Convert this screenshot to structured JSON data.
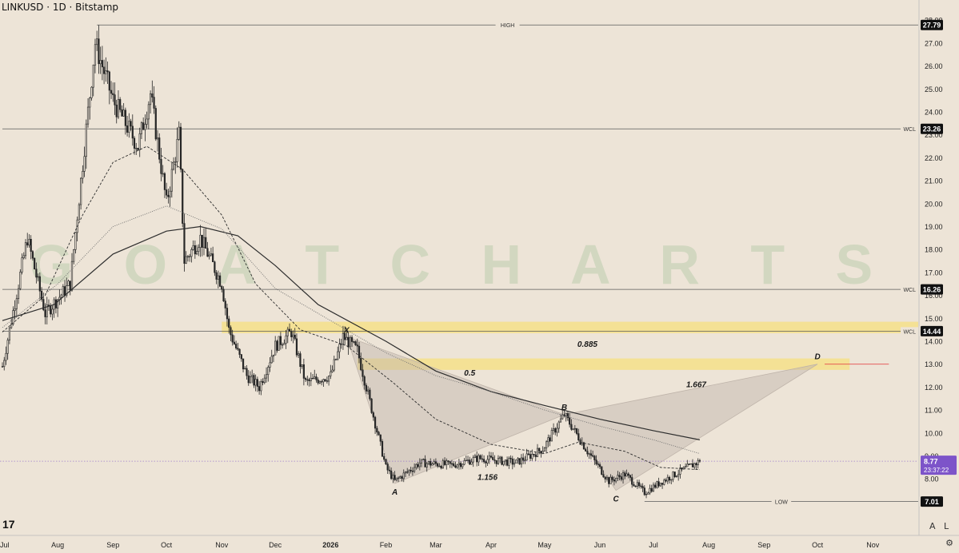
{
  "title": "LINKUSD · 1D · Bitstamp",
  "watermark": "G O A T   C H A R T S",
  "scale_buttons": {
    "auto": "A",
    "log": "L"
  },
  "settings_icon": "gear-icon",
  "tv_logo": "17",
  "colors": {
    "background": "#ede4d7",
    "candle": "#262626",
    "zone": "#f5e08a",
    "pattern_fill": "#bfb4aa",
    "price_label": "#7d54c9",
    "red_line": "#e34b4b",
    "watermark": "#c8d3b8"
  },
  "chart_data": {
    "type": "candlestick",
    "symbol": "LINKUSD",
    "interval": "1D",
    "exchange": "Bitstamp",
    "y_axis": {
      "ticks": [
        8.0,
        9.0,
        10.0,
        11.0,
        12.0,
        13.0,
        14.0,
        15.0,
        16.0,
        17.0,
        18.0,
        19.0,
        20.0,
        21.0,
        22.0,
        23.0,
        24.0,
        25.0,
        26.0,
        27.0,
        28.0
      ],
      "tick_labels": [
        "8.00",
        "9.00",
        "10.00",
        "11.00",
        "12.00",
        "13.00",
        "14.00",
        "15.00",
        "16.00",
        "17.00",
        "18.00",
        "19.00",
        "20.00",
        "21.00",
        "22.00",
        "23.00",
        "24.00",
        "25.00",
        "26.00",
        "27.00",
        "28.00"
      ],
      "ylim": [
        6.0,
        28.2
      ]
    },
    "x_axis": {
      "labels": [
        "Jul",
        "Aug",
        "Sep",
        "Oct",
        "Nov",
        "Dec",
        "2026",
        "Feb",
        "Mar",
        "Apr",
        "May",
        "Jun",
        "Jul",
        "Aug",
        "Sep",
        "Oct",
        "Nov"
      ],
      "dates": [
        "2025-07-01",
        "2025-08-01",
        "2025-09-01",
        "2025-10-01",
        "2025-11-01",
        "2025-12-01",
        "2026-01-01",
        "2026-02-01",
        "2026-03-01",
        "2026-04-01",
        "2026-05-01",
        "2026-06-01",
        "2026-07-01",
        "2026-08-01",
        "2026-09-01",
        "2026-10-01",
        "2026-11-01"
      ],
      "bold_labels": [
        "2026"
      ]
    },
    "key_points": [
      {
        "date": "2025-07-01",
        "price": 12.9
      },
      {
        "date": "2025-07-15",
        "price": 18.5
      },
      {
        "date": "2025-07-25",
        "price": 15.2
      },
      {
        "date": "2025-08-08",
        "price": 16.5
      },
      {
        "date": "2025-08-22",
        "price": 27.0
      },
      {
        "date": "2025-09-01",
        "price": 24.5
      },
      {
        "date": "2025-09-15",
        "price": 22.5
      },
      {
        "date": "2025-09-22",
        "price": 24.8
      },
      {
        "date": "2025-10-01",
        "price": 20.0
      },
      {
        "date": "2025-10-08",
        "price": 23.0
      },
      {
        "date": "2025-10-11",
        "price": 17.5
      },
      {
        "date": "2025-10-20",
        "price": 18.5
      },
      {
        "date": "2025-11-01",
        "price": 16.5
      },
      {
        "date": "2025-11-05",
        "price": 14.5
      },
      {
        "date": "2025-11-15",
        "price": 12.5
      },
      {
        "date": "2025-11-22",
        "price": 12.0
      },
      {
        "date": "2025-12-01",
        "price": 13.8
      },
      {
        "date": "2025-12-10",
        "price": 14.4
      },
      {
        "date": "2025-12-18",
        "price": 12.2
      },
      {
        "date": "2026-01-01",
        "price": 12.5
      },
      {
        "date": "2026-01-08",
        "price": 14.2
      },
      {
        "date": "2026-01-16",
        "price": 13.6
      },
      {
        "date": "2026-02-01",
        "price": 8.5
      },
      {
        "date": "2026-02-06",
        "price": 7.9
      },
      {
        "date": "2026-02-20",
        "price": 8.7
      },
      {
        "date": "2026-03-10",
        "price": 8.6
      },
      {
        "date": "2026-03-25",
        "price": 8.9
      },
      {
        "date": "2026-04-15",
        "price": 8.7
      },
      {
        "date": "2026-04-30",
        "price": 9.3
      },
      {
        "date": "2026-05-12",
        "price": 10.8
      },
      {
        "date": "2026-05-25",
        "price": 9.2
      },
      {
        "date": "2026-06-06",
        "price": 7.9
      },
      {
        "date": "2026-06-15",
        "price": 8.2
      },
      {
        "date": "2026-06-26",
        "price": 7.4
      },
      {
        "date": "2026-07-06",
        "price": 7.9
      },
      {
        "date": "2026-07-18",
        "price": 8.4
      },
      {
        "date": "2026-07-27",
        "price": 8.77
      }
    ],
    "moving_averages": [
      {
        "style": "solid",
        "points": [
          {
            "date": "2025-07-01",
            "price": 14.9
          },
          {
            "date": "2025-07-30",
            "price": 15.6
          },
          {
            "date": "2025-09-01",
            "price": 17.8
          },
          {
            "date": "2025-10-01",
            "price": 18.8
          },
          {
            "date": "2025-10-20",
            "price": 19.0
          },
          {
            "date": "2025-11-10",
            "price": 18.6
          },
          {
            "date": "2025-12-01",
            "price": 17.3
          },
          {
            "date": "2025-12-25",
            "price": 15.6
          },
          {
            "date": "2026-02-01",
            "price": 14.0
          },
          {
            "date": "2026-03-01",
            "price": 12.7
          },
          {
            "date": "2026-04-01",
            "price": 11.8
          },
          {
            "date": "2026-05-01",
            "price": 11.2
          },
          {
            "date": "2026-06-01",
            "price": 10.6
          },
          {
            "date": "2026-07-01",
            "price": 10.1
          },
          {
            "date": "2026-07-27",
            "price": 9.7
          }
        ]
      },
      {
        "style": "dashed",
        "points": [
          {
            "date": "2025-07-01",
            "price": 14.4
          },
          {
            "date": "2025-07-25",
            "price": 16.0
          },
          {
            "date": "2025-08-15",
            "price": 19.5
          },
          {
            "date": "2025-09-01",
            "price": 21.8
          },
          {
            "date": "2025-09-20",
            "price": 22.5
          },
          {
            "date": "2025-10-10",
            "price": 21.5
          },
          {
            "date": "2025-11-01",
            "price": 19.5
          },
          {
            "date": "2025-11-20",
            "price": 16.5
          },
          {
            "date": "2025-12-15",
            "price": 14.5
          },
          {
            "date": "2026-01-10",
            "price": 13.8
          },
          {
            "date": "2026-02-05",
            "price": 12.2
          },
          {
            "date": "2026-03-01",
            "price": 10.6
          },
          {
            "date": "2026-04-01",
            "price": 9.5
          },
          {
            "date": "2026-05-01",
            "price": 9.1
          },
          {
            "date": "2026-05-20",
            "price": 9.6
          },
          {
            "date": "2026-06-15",
            "price": 9.2
          },
          {
            "date": "2026-07-05",
            "price": 8.5
          },
          {
            "date": "2026-07-27",
            "price": 8.4
          }
        ]
      },
      {
        "style": "dotted",
        "points": [
          {
            "date": "2025-07-01",
            "price": 14.6
          },
          {
            "date": "2025-08-01",
            "price": 16.5
          },
          {
            "date": "2025-09-01",
            "price": 19.0
          },
          {
            "date": "2025-10-01",
            "price": 19.9
          },
          {
            "date": "2025-11-01",
            "price": 18.9
          },
          {
            "date": "2025-12-01",
            "price": 16.3
          },
          {
            "date": "2026-01-01",
            "price": 14.9
          },
          {
            "date": "2026-02-01",
            "price": 13.5
          },
          {
            "date": "2026-03-01",
            "price": 12.5
          },
          {
            "date": "2026-04-01",
            "price": 11.8
          },
          {
            "date": "2026-05-01",
            "price": 11.0
          },
          {
            "date": "2026-06-01",
            "price": 10.3
          },
          {
            "date": "2026-07-01",
            "price": 9.7
          },
          {
            "date": "2026-07-27",
            "price": 9.1
          }
        ]
      }
    ],
    "horizontal_levels": [
      {
        "name": "HIGH",
        "price": 27.79,
        "start": "2025-08-23",
        "end": "axis",
        "label_position": "middle",
        "axis_label": "27.79",
        "axis_style": "dark"
      },
      {
        "name": "WCL",
        "price": 23.26,
        "start": "2025-07-01",
        "end": "axis",
        "label_position": "right",
        "axis_label": "23.26",
        "axis_style": "dark"
      },
      {
        "name": "WCL",
        "price": 16.26,
        "start": "2025-07-01",
        "end": "axis",
        "label_position": "right",
        "axis_label": "16.26",
        "axis_style": "dark"
      },
      {
        "name": "WCL",
        "price": 14.44,
        "start": "2025-07-01",
        "end": "axis",
        "label_position": "right",
        "axis_label": "14.44",
        "axis_style": "dark"
      },
      {
        "name": "LOW",
        "price": 7.01,
        "start": "2026-06-26",
        "end": "axis",
        "label_position": "middle",
        "axis_label": "7.01",
        "axis_style": "dark"
      }
    ],
    "zones": [
      {
        "top": 14.85,
        "bottom": 14.35,
        "start": "2025-11-01",
        "end": "axis"
      },
      {
        "top": 13.25,
        "bottom": 12.75,
        "start": "2026-01-16",
        "end": "2026-10-19"
      }
    ],
    "extra_lines": [
      {
        "price": 13.0,
        "start": "2026-10-05",
        "end": "2026-11-10",
        "style": "red"
      }
    ],
    "harmonic_pattern": {
      "points": [
        {
          "label": "X",
          "date": "2026-01-10",
          "price": 14.2
        },
        {
          "label": "A",
          "date": "2026-02-06",
          "price": 7.8
        },
        {
          "label": "B",
          "date": "2026-05-12",
          "price": 10.8
        },
        {
          "label": "C",
          "date": "2026-06-10",
          "price": 7.5
        },
        {
          "label": "D",
          "date": "2026-10-01",
          "price": 13.0
        }
      ],
      "ratios": [
        {
          "value": "0.5",
          "date": "2026-03-20",
          "price": 12.5
        },
        {
          "value": "0.885",
          "date": "2026-05-25",
          "price": 13.75
        },
        {
          "value": "1.156",
          "date": "2026-03-30",
          "price": 7.95
        },
        {
          "value": "1.667",
          "date": "2026-07-25",
          "price": 12.0
        }
      ]
    },
    "current_price": {
      "value": 8.77,
      "label": "8.77",
      "countdown": "23:37:22"
    }
  }
}
